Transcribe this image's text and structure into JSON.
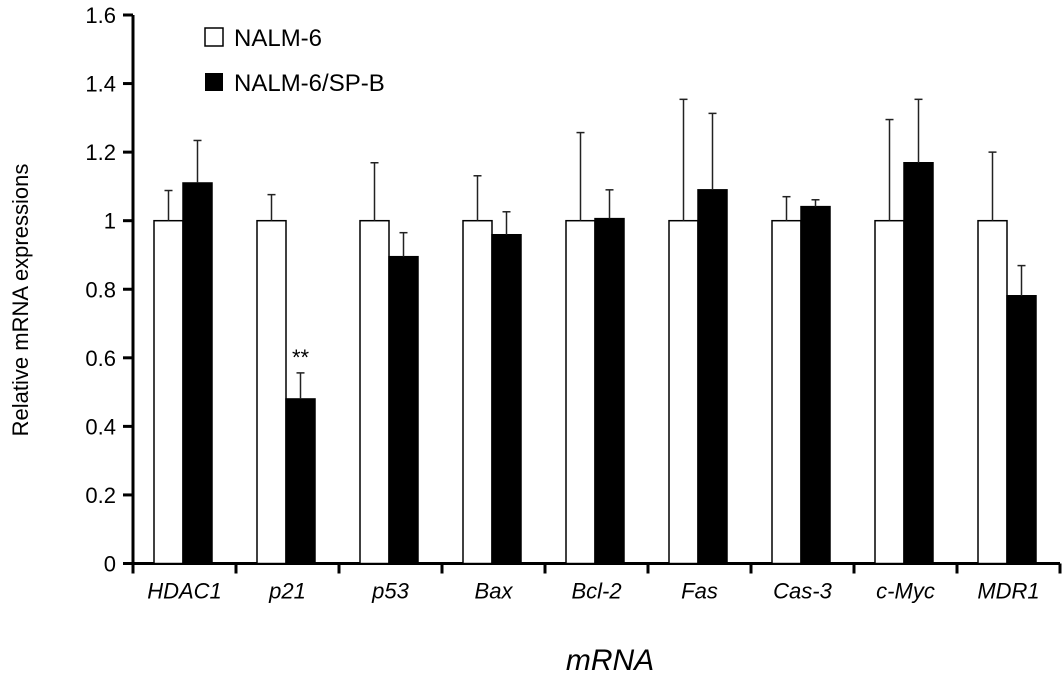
{
  "chart_data": {
    "type": "bar",
    "title": "",
    "xlabel": "mRNA",
    "ylabel": "Relative mRNA expressions",
    "ylim": [
      0,
      1.6
    ],
    "yticks": [
      "0",
      "0.2",
      "0.4",
      "0.6",
      "0.8",
      "1",
      "1.2",
      "1.4",
      "1.6"
    ],
    "grid": false,
    "legend_placement": "top-left",
    "categories": [
      "HDAC1",
      "p21",
      "p53",
      "Bax",
      "Bcl-2",
      "Fas",
      "Cas-3",
      "c-Myc",
      "MDR1"
    ],
    "series": [
      {
        "name": "NALM-6",
        "color": "#ffffff",
        "values": [
          1,
          1,
          1,
          1,
          1,
          1,
          1,
          1,
          1
        ],
        "error": [
          0.088,
          0.076,
          0.169,
          0.131,
          0.257,
          0.354,
          0.07,
          0.295,
          0.2
        ]
      },
      {
        "name": "NALM-6/SP-B",
        "color": "#000000",
        "values": [
          1.11,
          0.48,
          0.895,
          0.959,
          1.006,
          1.09,
          1.041,
          1.169,
          0.781
        ],
        "error": [
          0.124,
          0.076,
          0.07,
          0.067,
          0.084,
          0.223,
          0.02,
          0.185,
          0.088
        ]
      }
    ],
    "annotations": [
      {
        "category": "p21",
        "series": "NALM-6/SP-B",
        "text": "**"
      }
    ]
  }
}
